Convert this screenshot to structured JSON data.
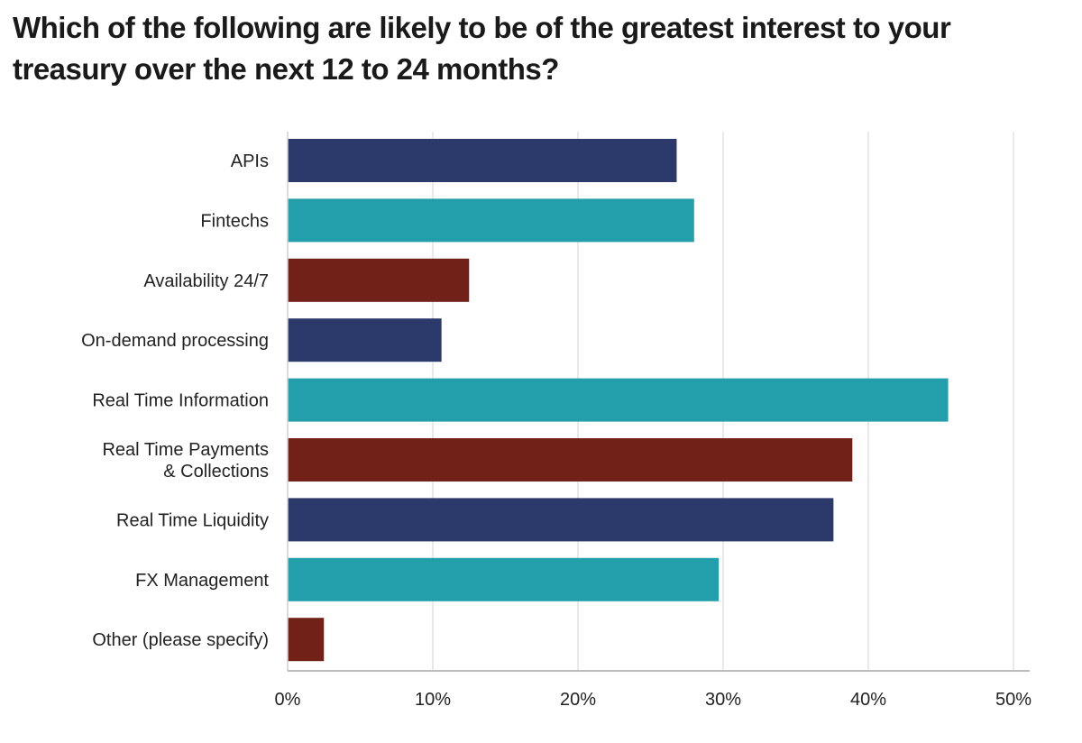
{
  "title": "Which of the following are likely to be of the greatest interest to your treasury over the next 12 to 24 months?",
  "chart_data": {
    "type": "bar",
    "orientation": "horizontal",
    "categories": [
      "APIs",
      "Fintechs",
      "Availability 24/7",
      "On-demand processing",
      "Real Time Information",
      "Real Time Payments & Collections",
      "Real Time Liquidity",
      "FX Management",
      "Other (please specify)"
    ],
    "category_label_lines": [
      [
        "APIs"
      ],
      [
        "Fintechs"
      ],
      [
        "Availability 24/7"
      ],
      [
        "On-demand processing"
      ],
      [
        "Real Time Information"
      ],
      [
        "Real Time Payments",
        "& Collections"
      ],
      [
        "Real Time Liquidity"
      ],
      [
        "FX Management"
      ],
      [
        "Other (please specify)"
      ]
    ],
    "values": [
      26.8,
      28.0,
      12.5,
      10.6,
      45.5,
      38.9,
      37.6,
      29.7,
      2.5
    ],
    "value_unit": "%",
    "xlim": [
      0,
      50
    ],
    "xticks": [
      0,
      10,
      20,
      30,
      40,
      50
    ],
    "xtick_labels": [
      "0%",
      "10%",
      "20%",
      "30%",
      "40%",
      "50%"
    ],
    "grid": "vertical",
    "colors": [
      "#2b396b",
      "#229faa",
      "#722119",
      "#2b396b",
      "#229faa",
      "#722119",
      "#2b396b",
      "#229faa",
      "#722119"
    ],
    "xlabel": "",
    "ylabel": ""
  }
}
